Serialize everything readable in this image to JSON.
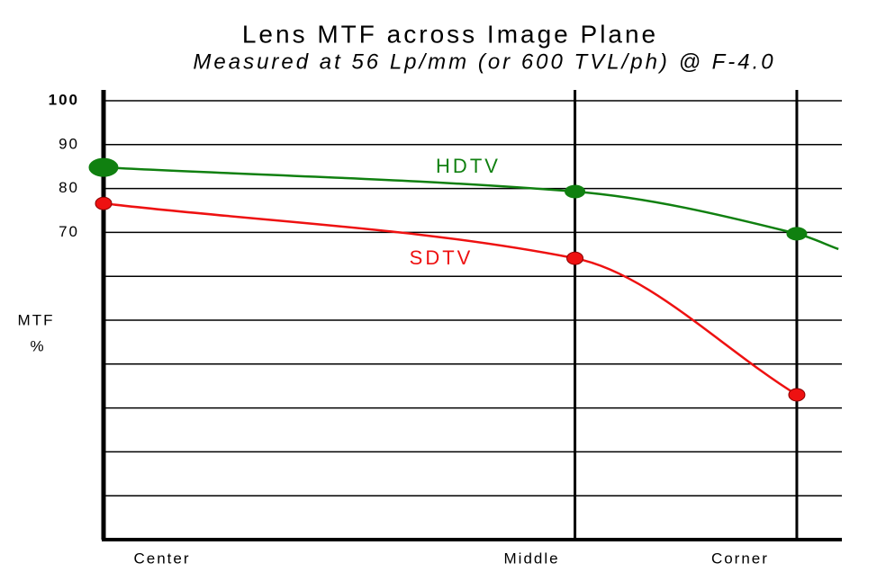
{
  "chart_data": {
    "type": "line",
    "title": "Lens MTF across Image Plane",
    "subtitle": "Measured at 56 Lp/mm (or 600 TVL/ph) @ F-4.0",
    "ylabel": [
      "MTF",
      "%"
    ],
    "xlim": [
      0,
      1.065
    ],
    "xticks": [
      {
        "value": 0,
        "label": "Center"
      },
      {
        "value": 0.68,
        "label": "Middle"
      },
      {
        "value": 1,
        "label": "Corner"
      }
    ],
    "ylim": [
      0,
      100
    ],
    "yticks": [
      100,
      90,
      80,
      70
    ],
    "minor_gridlines": [
      60,
      50,
      40,
      30,
      20,
      10
    ],
    "grid": true,
    "series": [
      {
        "name": "HDTV",
        "color": "#108010",
        "x": [
          0,
          0.68,
          1,
          1.06
        ],
        "values": [
          84.8,
          79.3,
          69.7,
          66.2
        ],
        "markers": [
          true,
          true,
          true,
          false
        ]
      },
      {
        "name": "SDTV",
        "color": "#ee1111",
        "x": [
          0,
          0.68,
          1
        ],
        "values": [
          76.6,
          64.1,
          33
        ],
        "markers": [
          true,
          true,
          true
        ]
      }
    ]
  }
}
